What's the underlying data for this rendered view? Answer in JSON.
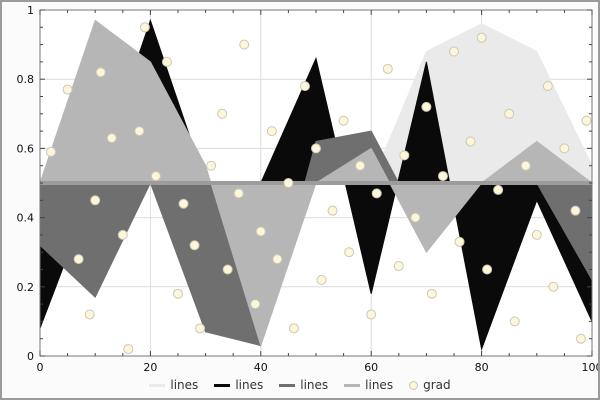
{
  "window": {
    "background": "#fbfbfb",
    "border_color": "#9b9b9b",
    "plot_background": "#ffffff"
  },
  "chart_data": {
    "type": "area",
    "title": "",
    "xlabel": "",
    "ylabel": "",
    "xlim": [
      0,
      100
    ],
    "ylim": [
      0,
      1
    ],
    "xticks": [
      0,
      20,
      40,
      60,
      80,
      100
    ],
    "xtick_labels": [
      "0",
      "20",
      "40",
      "60",
      "80",
      "100"
    ],
    "yticks": [
      0,
      0.2,
      0.4,
      0.6,
      0.8,
      1
    ],
    "ytick_labels": [
      "0",
      "0.2",
      "0.4",
      "0.6",
      "0.8",
      "1"
    ],
    "grid": true,
    "grid_color": "#dcdcdc",
    "frame_color": "#777777",
    "tick_color": "#444444",
    "baseline": 0.5,
    "baseline_color": "#9c9c9c",
    "x": [
      0,
      10,
      20,
      30,
      40,
      50,
      60,
      70,
      80,
      90,
      100
    ],
    "legend_position": "bottom-center",
    "series": [
      {
        "name": "lines",
        "type": "area",
        "color": "#eaeaea",
        "values": [
          0.5,
          0.5,
          0.5,
          0.5,
          0.5,
          0.5,
          0.5,
          0.88,
          0.96,
          0.88,
          0.55
        ]
      },
      {
        "name": "lines",
        "type": "area",
        "color": "#0a0a0a",
        "values": [
          0.08,
          0.5,
          0.97,
          0.5,
          0.5,
          0.86,
          0.18,
          0.85,
          0.02,
          0.45,
          0.1
        ]
      },
      {
        "name": "lines",
        "type": "area",
        "color": "#6f6f6f",
        "values": [
          0.32,
          0.17,
          0.5,
          0.07,
          0.03,
          0.62,
          0.65,
          0.35,
          0.5,
          0.5,
          0.22
        ]
      },
      {
        "name": "lines",
        "type": "area",
        "color": "#b6b6b6",
        "values": [
          0.5,
          0.97,
          0.85,
          0.55,
          0.03,
          0.5,
          0.6,
          0.3,
          0.5,
          0.62,
          0.5
        ]
      },
      {
        "name": "grad",
        "type": "scatter",
        "color": "#fdf6d8",
        "edge": "#c9c9b8",
        "points": [
          [
            2,
            0.59
          ],
          [
            5,
            0.77
          ],
          [
            7,
            0.28
          ],
          [
            9,
            0.12
          ],
          [
            10,
            0.45
          ],
          [
            11,
            0.82
          ],
          [
            13,
            0.63
          ],
          [
            15,
            0.35
          ],
          [
            16,
            0.02
          ],
          [
            18,
            0.65
          ],
          [
            19,
            0.95
          ],
          [
            21,
            0.52
          ],
          [
            23,
            0.85
          ],
          [
            25,
            0.18
          ],
          [
            26,
            0.44
          ],
          [
            28,
            0.32
          ],
          [
            29,
            0.08
          ],
          [
            31,
            0.55
          ],
          [
            33,
            0.7
          ],
          [
            34,
            0.25
          ],
          [
            36,
            0.47
          ],
          [
            37,
            0.9
          ],
          [
            39,
            0.15
          ],
          [
            40,
            0.36
          ],
          [
            42,
            0.65
          ],
          [
            43,
            0.28
          ],
          [
            45,
            0.5
          ],
          [
            46,
            0.08
          ],
          [
            48,
            0.78
          ],
          [
            50,
            0.6
          ],
          [
            51,
            0.22
          ],
          [
            53,
            0.42
          ],
          [
            55,
            0.68
          ],
          [
            56,
            0.3
          ],
          [
            58,
            0.55
          ],
          [
            60,
            0.12
          ],
          [
            61,
            0.47
          ],
          [
            63,
            0.83
          ],
          [
            65,
            0.26
          ],
          [
            66,
            0.58
          ],
          [
            68,
            0.4
          ],
          [
            70,
            0.72
          ],
          [
            71,
            0.18
          ],
          [
            73,
            0.52
          ],
          [
            75,
            0.88
          ],
          [
            76,
            0.33
          ],
          [
            78,
            0.62
          ],
          [
            80,
            0.92
          ],
          [
            81,
            0.25
          ],
          [
            83,
            0.48
          ],
          [
            85,
            0.7
          ],
          [
            86,
            0.1
          ],
          [
            88,
            0.55
          ],
          [
            90,
            0.35
          ],
          [
            92,
            0.78
          ],
          [
            93,
            0.2
          ],
          [
            95,
            0.6
          ],
          [
            97,
            0.42
          ],
          [
            98,
            0.05
          ],
          [
            99,
            0.68
          ]
        ]
      }
    ]
  }
}
